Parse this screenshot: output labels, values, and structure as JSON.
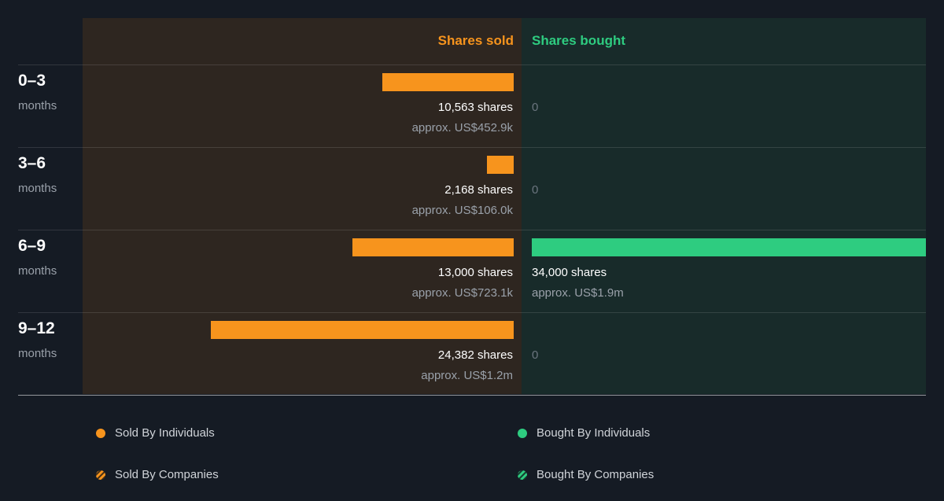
{
  "chart_data": {
    "type": "bar",
    "orientation": "horizontal-diverging",
    "sold_label": "Shares sold",
    "bought_label": "Shares bought",
    "categories": [
      {
        "period": "0–3",
        "unit": "months"
      },
      {
        "period": "3–6",
        "unit": "months"
      },
      {
        "period": "6–9",
        "unit": "months"
      },
      {
        "period": "9–12",
        "unit": "months"
      }
    ],
    "sold": {
      "values": [
        10563,
        2168,
        13000,
        24382
      ],
      "shares_text": [
        "10,563 shares",
        "2,168 shares",
        "13,000 shares",
        "24,382 shares"
      ],
      "value_text": [
        "approx. US$452.9k",
        "approx. US$106.0k",
        "approx. US$723.1k",
        "approx. US$1.2m"
      ],
      "color": "#f7941d"
    },
    "bought": {
      "values": [
        0,
        0,
        34000,
        0
      ],
      "shares_text": [
        "0",
        "0",
        "34,000 shares",
        "0"
      ],
      "value_text": [
        "",
        "",
        "approx. US$1.9m",
        ""
      ],
      "color": "#2ecc80"
    },
    "legend": [
      {
        "label": "Sold By Individuals",
        "color": "#f7941d",
        "pattern": "solid"
      },
      {
        "label": "Bought By Individuals",
        "color": "#2ecc80",
        "pattern": "solid"
      },
      {
        "label": "Sold By Companies",
        "color": "#f7941d",
        "pattern": "striped"
      },
      {
        "label": "Bought By Companies",
        "color": "#2ecc80",
        "pattern": "striped"
      }
    ]
  }
}
